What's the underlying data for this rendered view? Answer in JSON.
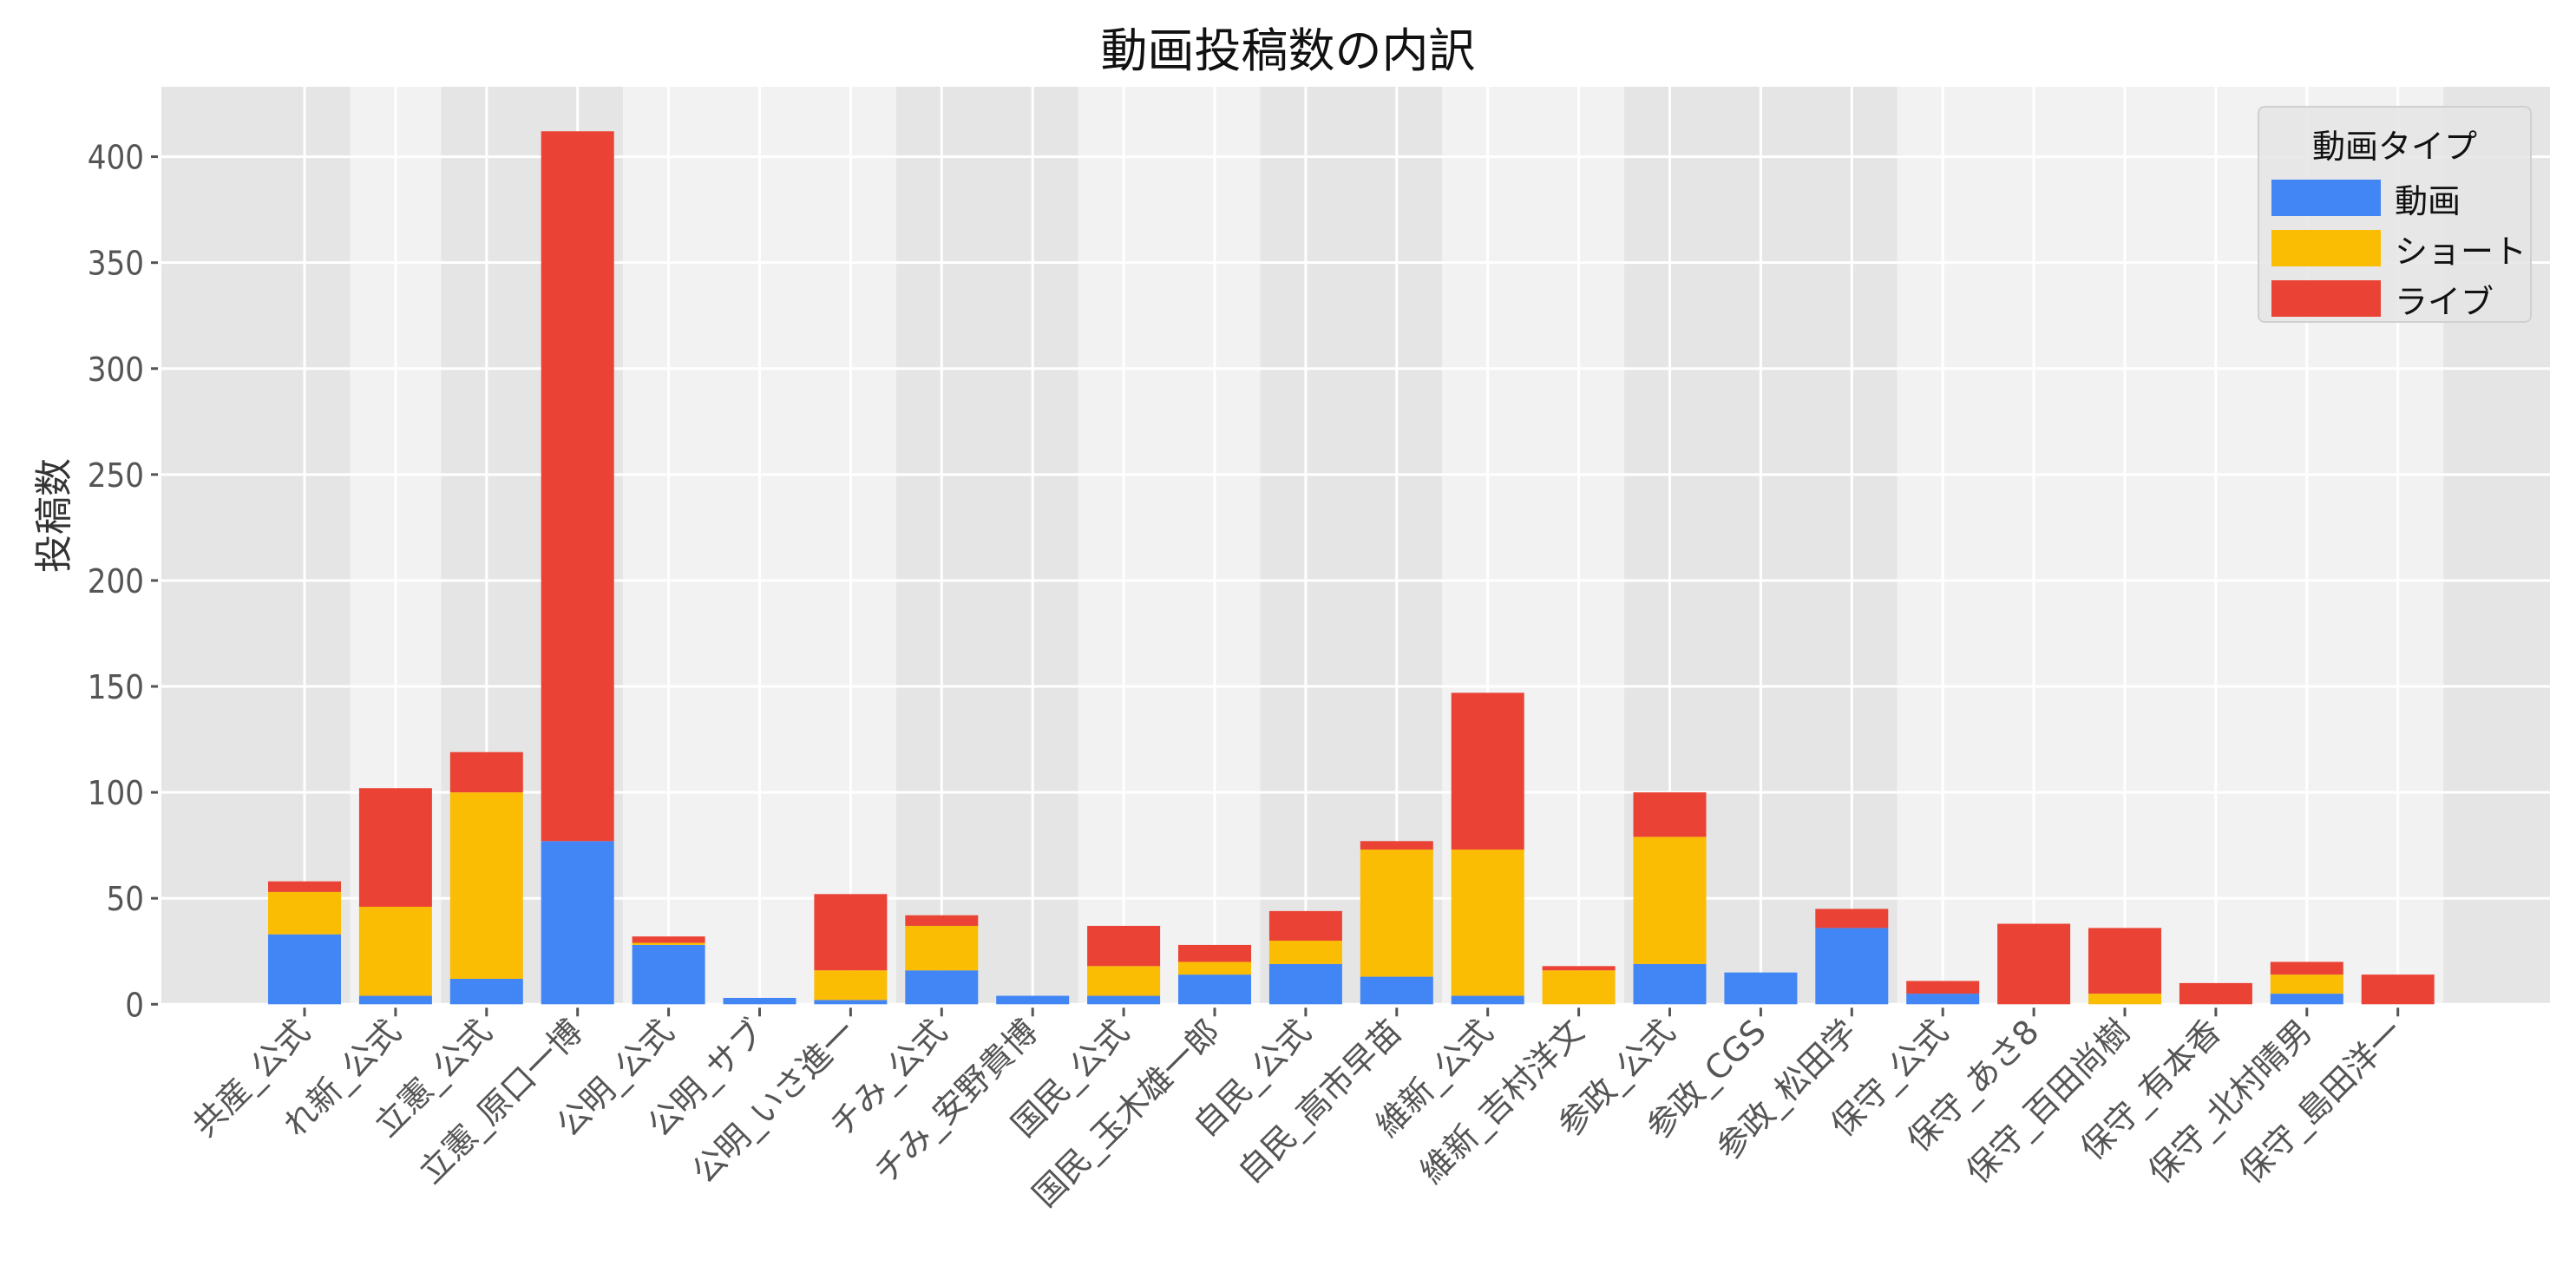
{
  "chart_data": {
    "type": "bar",
    "stacked": true,
    "title": "動画投稿数の内訳",
    "xlabel": "",
    "ylabel": "投稿数",
    "ylim": [
      0,
      433
    ],
    "yticks": [
      0,
      50,
      100,
      150,
      200,
      250,
      300,
      350,
      400
    ],
    "grid": true,
    "legend": {
      "title": "動画タイプ",
      "position": "upper right"
    },
    "categories": [
      "共産_公式",
      "れ新_公式",
      "立憲_公式",
      "立憲_原口一博",
      "公明_公式",
      "公明_サブ",
      "公明_いさ進一",
      "チみ_公式",
      "チみ_安野貴博",
      "国民_公式",
      "国民_玉木雄一郎",
      "自民_公式",
      "自民_高市早苗",
      "維新_公式",
      "維新_吉村洋文",
      "参政_公式",
      "参政_CGS",
      "参政_松田学",
      "保守_公式",
      "保守_あさ8",
      "保守_百田尚樹",
      "保守_有本香",
      "保守_北村晴男",
      "保守_島田洋一"
    ],
    "groups": [
      {
        "name": "共産",
        "start": 0,
        "end": 0
      },
      {
        "name": "れ新",
        "start": 1,
        "end": 1
      },
      {
        "name": "立憲",
        "start": 2,
        "end": 3
      },
      {
        "name": "公明",
        "start": 4,
        "end": 6
      },
      {
        "name": "チみ",
        "start": 7,
        "end": 8
      },
      {
        "name": "国民",
        "start": 9,
        "end": 10
      },
      {
        "name": "自民",
        "start": 11,
        "end": 12
      },
      {
        "name": "維新",
        "start": 13,
        "end": 14
      },
      {
        "name": "参政",
        "start": 15,
        "end": 17
      },
      {
        "name": "保守",
        "start": 18,
        "end": 23
      }
    ],
    "series": [
      {
        "name": "動画",
        "color": "#4285f4",
        "values": [
          33,
          4,
          12,
          77,
          28,
          3,
          2,
          16,
          4,
          4,
          14,
          19,
          13,
          4,
          0,
          19,
          15,
          36,
          5,
          0,
          0,
          0,
          5,
          0
        ]
      },
      {
        "name": "ショート",
        "color": "#fbbc04",
        "values": [
          20,
          42,
          88,
          0,
          1,
          0,
          14,
          21,
          0,
          14,
          6,
          11,
          60,
          69,
          16,
          60,
          0,
          0,
          0,
          0,
          5,
          0,
          9,
          0
        ]
      },
      {
        "name": "ライブ",
        "color": "#ea4335",
        "values": [
          5,
          56,
          19,
          335,
          3,
          0,
          36,
          5,
          0,
          19,
          8,
          14,
          4,
          74,
          2,
          21,
          0,
          9,
          6,
          38,
          31,
          10,
          6,
          14
        ]
      }
    ]
  },
  "colors": {
    "band_dark": "#e5e5e5",
    "band_light": "#f2f2f2",
    "grid": "#ffffff",
    "tick_text": "#555555"
  }
}
